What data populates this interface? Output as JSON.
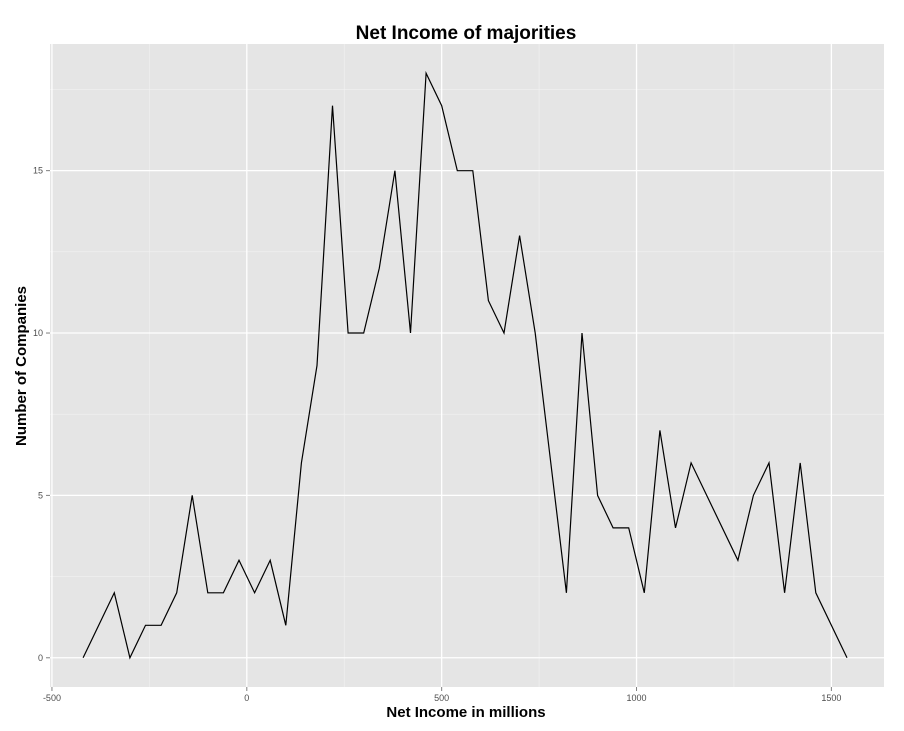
{
  "chart_data": {
    "type": "line",
    "title": "Net Income of majorities",
    "xlabel": "Net Income in millions",
    "ylabel": "Number of Companies",
    "xlim": [
      -505,
      1635
    ],
    "ylim": [
      -0.9,
      18.9
    ],
    "x_ticks": [
      -500,
      0,
      500,
      1000,
      1500
    ],
    "x_tick_labels": [
      "-500",
      "0",
      "500",
      "1000",
      "1500"
    ],
    "y_ticks": [
      0,
      5,
      10,
      15
    ],
    "y_tick_labels": [
      "0",
      "5",
      "10",
      "15"
    ],
    "grid": true,
    "background": "#e5e5e5",
    "line_color": "#000000",
    "series": [
      {
        "x": [
          -420,
          -340,
          -300,
          -260,
          -220,
          -180,
          -140,
          -100,
          -60,
          -20,
          20,
          60,
          100,
          140,
          180,
          220,
          260,
          300,
          340,
          380,
          420,
          460,
          500,
          540,
          580,
          620,
          660,
          700,
          740,
          780,
          820,
          860,
          900,
          940,
          980,
          1020,
          1060,
          1100,
          1140,
          1260,
          1300,
          1340,
          1380,
          1420,
          1460,
          1540
        ],
        "y": [
          0,
          2,
          0,
          1,
          1,
          2,
          5,
          2,
          2,
          3,
          2,
          3,
          1,
          6,
          9,
          17,
          10,
          10,
          12,
          15,
          10,
          18,
          17,
          15,
          15,
          11,
          10,
          13,
          10,
          6,
          2,
          10,
          5,
          4,
          4,
          2,
          7,
          4,
          6,
          3,
          5,
          6,
          2,
          6,
          2,
          0
        ]
      }
    ]
  }
}
